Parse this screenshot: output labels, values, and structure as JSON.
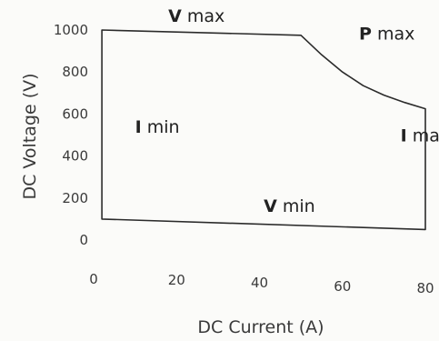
{
  "chart_data": {
    "type": "line",
    "title": "",
    "xlabel": "DC Current (A)",
    "ylabel": "DC Voltage (V)",
    "xlim": [
      0,
      80
    ],
    "ylim": [
      0,
      1000
    ],
    "x_ticks": [
      "0",
      "20",
      "40",
      "60",
      "80"
    ],
    "y_ticks": [
      "0",
      "200",
      "400",
      "600",
      "800",
      "1000"
    ],
    "grid": false,
    "legend": "none",
    "series": [
      {
        "x": [
          2,
          2,
          50,
          55,
          60,
          65,
          70,
          75,
          80,
          80,
          2
        ],
        "y": [
          100,
          1000,
          975,
          882,
          800,
          735,
          690,
          655,
          625,
          50,
          100
        ]
      }
    ],
    "annotations": [
      {
        "id": "vmax",
        "bold": "V",
        "text": " max",
        "x": 18,
        "y": 1040
      },
      {
        "id": "pmax",
        "bold": "P",
        "text": " max",
        "x": 64,
        "y": 955
      },
      {
        "id": "imin",
        "bold": "I",
        "text": " min",
        "x": 10,
        "y": 510
      },
      {
        "id": "imax",
        "bold": "I",
        "text": " max",
        "x": 74,
        "y": 470
      },
      {
        "id": "vmin",
        "bold": "V",
        "text": " min",
        "x": 41,
        "y": 135
      }
    ],
    "line_color": "#2b2b2b"
  }
}
